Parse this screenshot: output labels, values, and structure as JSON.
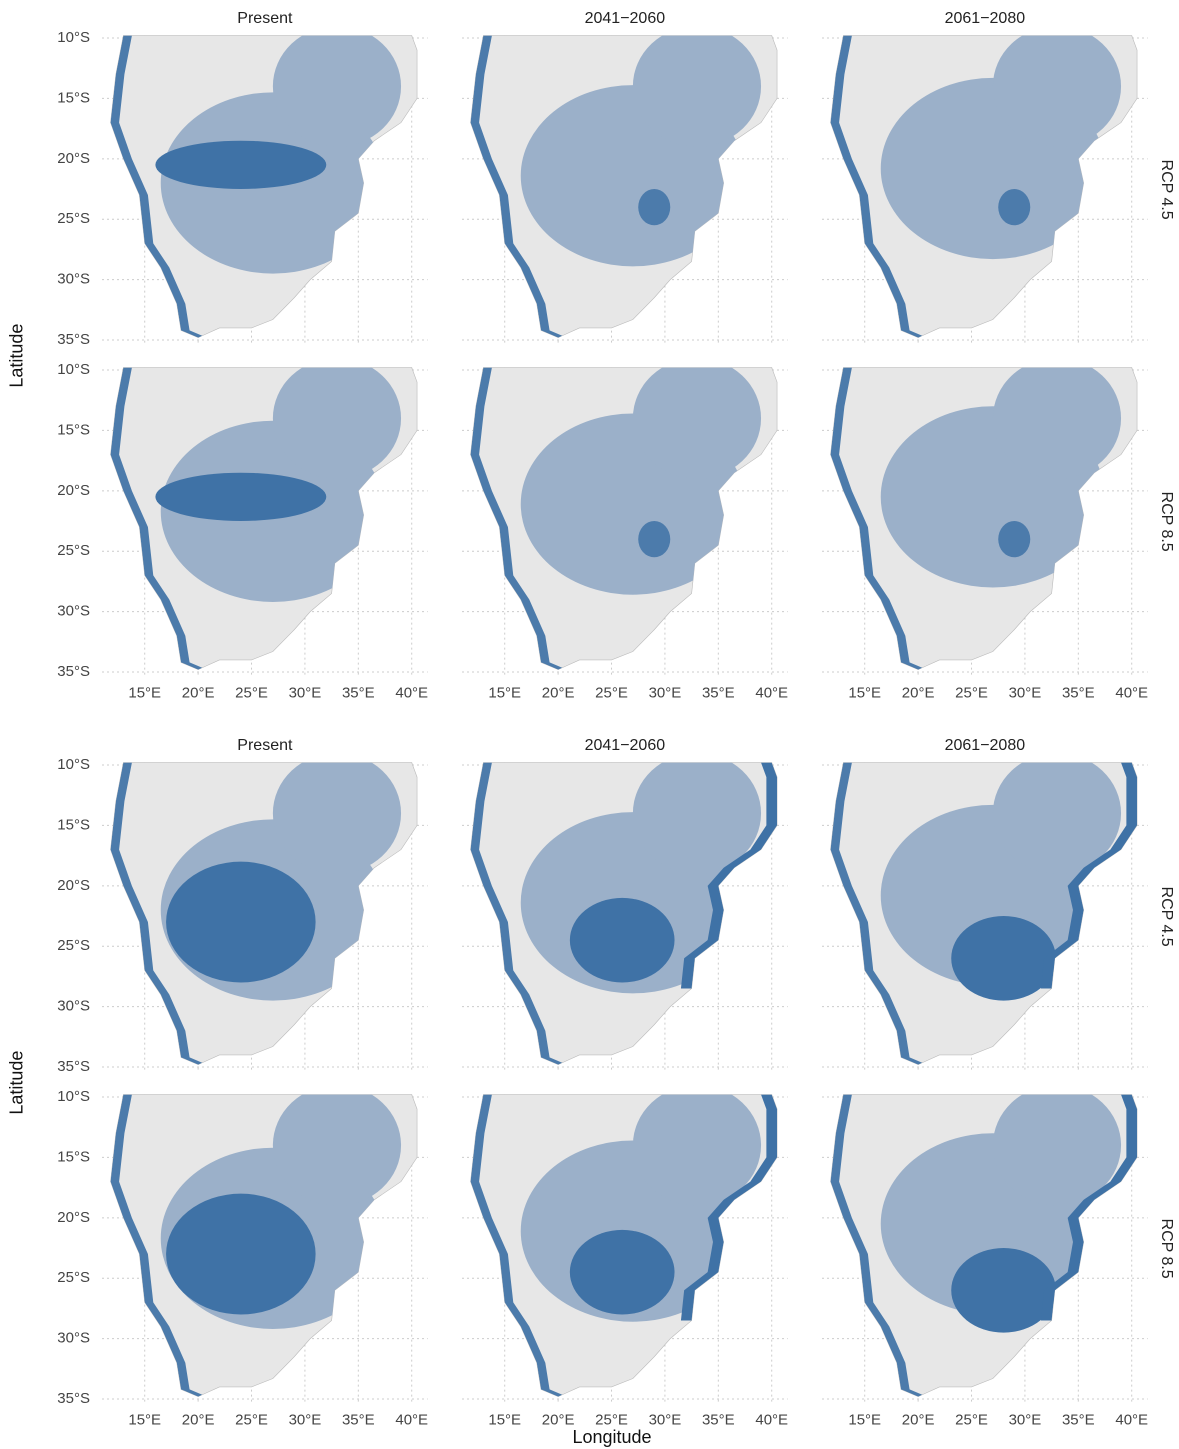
{
  "blocks": [
    {
      "column_titles": [
        "Present",
        "2041−2060",
        "2061−2080"
      ],
      "row_labels": [
        "RCP 4.5",
        "RCP 8.5"
      ],
      "y_axis_title": "Latitude"
    },
    {
      "column_titles": [
        "Present",
        "2041−2060",
        "2061−2080"
      ],
      "row_labels": [
        "RCP 4.5",
        "RCP 8.5"
      ],
      "y_axis_title": "Latitude",
      "x_axis_title": "Longitude"
    }
  ],
  "xlim": [
    11,
    41.5
  ],
  "ylim": [
    -35.3,
    -9.8
  ],
  "xticks": [
    {
      "value": 15,
      "label": "15°E"
    },
    {
      "value": 20,
      "label": "20°E"
    },
    {
      "value": 25,
      "label": "25°E"
    },
    {
      "value": 30,
      "label": "30°E"
    },
    {
      "value": 35,
      "label": "35°E"
    },
    {
      "value": 40,
      "label": "40°E"
    }
  ],
  "yticks": [
    {
      "value": -10,
      "label": "10°S"
    },
    {
      "value": -15,
      "label": "15°S"
    },
    {
      "value": -20,
      "label": "20°S"
    },
    {
      "value": -25,
      "label": "25°S"
    },
    {
      "value": -30,
      "label": "30°S"
    },
    {
      "value": -35,
      "label": "35°S"
    }
  ]
}
